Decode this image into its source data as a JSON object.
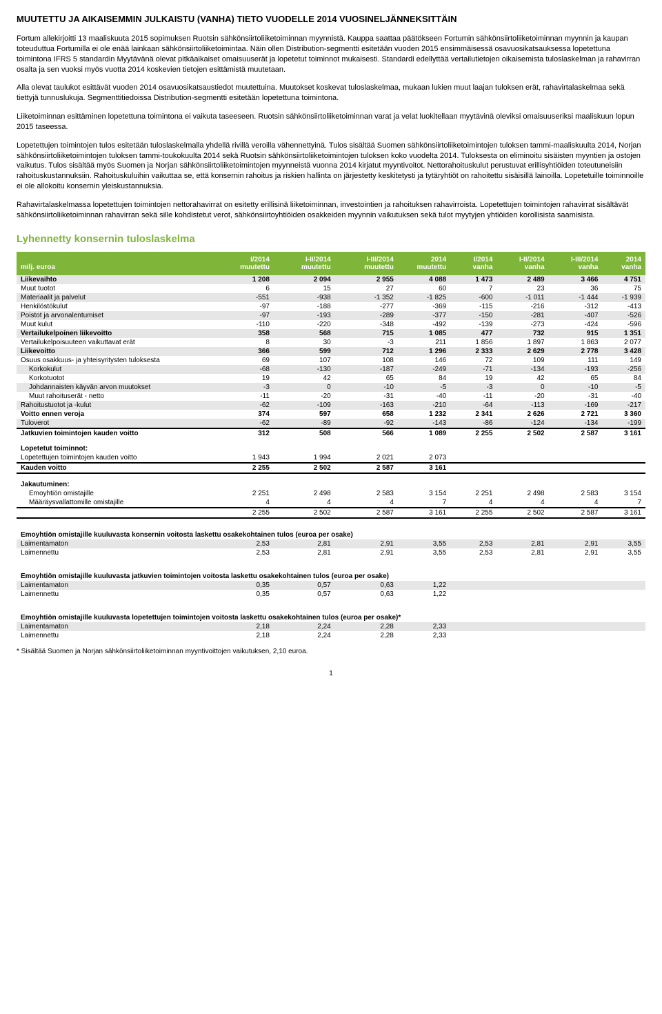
{
  "title": "MUUTETTU JA AIKAISEMMIN JULKAISTU (VANHA) TIETO VUODELLE 2014 VUOSINELJÄNNEKSITTÄIN",
  "para1": "Fortum allekirjoitti 13 maaliskuuta 2015 sopimuksen Ruotsin sähkönsiirtoliiketoiminnan myynnistä. Kauppa saattaa päätökseen Fortumin sähkönsiirtoliiketoiminnan myynnin ja kaupan toteuduttua Fortumilla ei ole enää lainkaan sähkönsiirtoliiketoimintaa. Näin ollen Distribution-segmentti esitetään vuoden 2015 ensimmäisessä osavuosikatsauksessa lopetettuna toimintona IFRS 5 standardin Myytävänä olevat pitkäaikaiset omaisuuserät ja lopetetut toiminnot mukaisesti. Standardi edellyttää vertailutietojen oikaisemista tuloslaskelman ja rahavirran osalta ja sen vuoksi myös vuotta 2014 koskevien tietojen esittämistä muutetaan.",
  "para2": "Alla olevat taulukot esittävät vuoden 2014 osavuosikatsaustiedot muutettuina. Muutokset koskevat tuloslaskelmaa, mukaan lukien muut laajan tuloksen erät, rahavirtalaskelmaa sekä tiettyjä tunnuslukuja. Segmenttitiedoissa Distribution-segmentti esitetään lopetettuna toimintona.",
  "para3": "Liiketoiminnan esittäminen lopetettuna toimintona ei vaikuta taseeseen. Ruotsin sähkönsiirtoliiketoiminnan varat ja velat luokitellaan myytävinä oleviksi omaisuuseriksi maaliskuun lopun 2015 taseessa.",
  "para4": "Lopetettujen toimintojen tulos esitetään tuloslaskelmalla yhdellä rivillä veroilla vähennettyinä. Tulos sisältää Suomen sähkönsiirtoliiketoimintojen tuloksen tammi-maaliskuulta 2014, Norjan sähkönsiirtoliiketoimintojen tuloksen tammi-toukokuulta 2014 sekä Ruotsin sähkönsiirtoliiketoimintojen tuloksen koko vuodelta 2014. Tuloksesta on eliminoitu sisäisten myyntien ja ostojen vaikutus. Tulos sisältää myös Suomen ja Norjan sähkönsiirtoliiketoimintojen myynneistä vuonna 2014 kirjatut myyntivoitot. Nettorahoituskulut perustuvat erillisyhtiöiden toteutuneisiin rahoituskustannuksiin. Rahoituskuluihin vaikuttaa se, että konsernin rahoitus ja riskien hallinta on järjestetty keskitetysti ja tytäryhtiöt on rahoitettu sisäisillä lainoilla. Lopetetuille toiminnoille ei ole allokoitu konsernin yleiskustannuksia.",
  "para5": "Rahavirtalaskelmassa lopetettujen toimintojen nettorahavirrat on esitetty erillisinä liiketoiminnan, investointien ja rahoituksen rahavirroista. Lopetettujen toimintojen rahavirrat sisältävät sähkönsiirtoliiketoiminnan rahavirran sekä sille kohdistetut verot, sähkönsiirtoyhtiöiden osakkeiden myynnin vaikutuksen sekä tulot myytyjen yhtiöiden korollisista saamisista.",
  "table_heading": "Lyhennetty konsernin tuloslaskelma",
  "unit_label": "milj. euroa",
  "cols": [
    "I/2014 muutettu",
    "I-II/2014 muutettu",
    "I-III/2014 muutettu",
    "2014 muutettu",
    "I/2014 vanha",
    "I-II/2014 vanha",
    "I-III/2014 vanha",
    "2014 vanha"
  ],
  "rows": [
    {
      "label": "Liikevaihto",
      "v": [
        "1 208",
        "2 094",
        "2 955",
        "4 088",
        "1 473",
        "2 489",
        "3 466",
        "4 751"
      ],
      "cls": "strong grayrow"
    },
    {
      "label": "Muut tuotot",
      "v": [
        "6",
        "15",
        "27",
        "60",
        "7",
        "23",
        "36",
        "75"
      ]
    },
    {
      "label": "Materiaalit ja palvelut",
      "v": [
        "-551",
        "-938",
        "-1 352",
        "-1 825",
        "-600",
        "-1 011",
        "-1 444",
        "-1 939"
      ],
      "cls": "grayrow"
    },
    {
      "label": "Henkilöstökulut",
      "v": [
        "-97",
        "-188",
        "-277",
        "-369",
        "-115",
        "-216",
        "-312",
        "-413"
      ]
    },
    {
      "label": "Poistot ja arvonalentumiset",
      "v": [
        "-97",
        "-193",
        "-289",
        "-377",
        "-150",
        "-281",
        "-407",
        "-526"
      ],
      "cls": "grayrow"
    },
    {
      "label": "Muut kulut",
      "v": [
        "-110",
        "-220",
        "-348",
        "-492",
        "-139",
        "-273",
        "-424",
        "-596"
      ]
    },
    {
      "label": "Vertailukelpoinen liikevoitto",
      "v": [
        "358",
        "568",
        "715",
        "1 085",
        "477",
        "732",
        "915",
        "1 351"
      ],
      "cls": "strong grayrow"
    },
    {
      "label": "Vertailukelpoisuuteen vaikuttavat erät",
      "v": [
        "8",
        "30",
        "-3",
        "211",
        "1 856",
        "1 897",
        "1 863",
        "2 077"
      ]
    },
    {
      "label": "Liikevoitto",
      "v": [
        "366",
        "599",
        "712",
        "1 296",
        "2 333",
        "2 629",
        "2 778",
        "3 428"
      ],
      "cls": "strong grayrow"
    },
    {
      "label": "Osuus osakkuus- ja yhteisyritysten tuloksesta",
      "v": [
        "69",
        "107",
        "108",
        "146",
        "72",
        "109",
        "111",
        "149"
      ]
    },
    {
      "label": "Korkokulut",
      "v": [
        "-68",
        "-130",
        "-187",
        "-249",
        "-71",
        "-134",
        "-193",
        "-256"
      ],
      "cls": "grayrow",
      "indent": true
    },
    {
      "label": "Korkotuotot",
      "v": [
        "19",
        "42",
        "65",
        "84",
        "19",
        "42",
        "65",
        "84"
      ],
      "indent": true
    },
    {
      "label": "Johdannaisten käyvän arvon muutokset",
      "v": [
        "-3",
        "0",
        "-10",
        "-5",
        "-3",
        "0",
        "-10",
        "-5"
      ],
      "cls": "grayrow",
      "indent": true
    },
    {
      "label": "Muut rahoituserät - netto",
      "v": [
        "-11",
        "-20",
        "-31",
        "-40",
        "-11",
        "-20",
        "-31",
        "-40"
      ],
      "indent": true
    },
    {
      "label": "Rahoitustuotot ja -kulut",
      "v": [
        "-62",
        "-109",
        "-163",
        "-210",
        "-64",
        "-113",
        "-169",
        "-217"
      ],
      "cls": "grayrow"
    },
    {
      "label": "Voitto ennen veroja",
      "v": [
        "374",
        "597",
        "658",
        "1 232",
        "2 341",
        "2 626",
        "2 721",
        "3 360"
      ],
      "cls": "strong"
    },
    {
      "label": "Tuloverot",
      "v": [
        "-62",
        "-89",
        "-92",
        "-143",
        "-86",
        "-124",
        "-134",
        "-199"
      ],
      "cls": "grayrow"
    },
    {
      "label": "Jatkuvien toimintojen kauden voitto",
      "v": [
        "312",
        "508",
        "566",
        "1 089",
        "2 255",
        "2 502",
        "2 587",
        "3 161"
      ],
      "cls": "strong totaltop"
    }
  ],
  "disc_heading": "Lopetetut toiminnot:",
  "disc_row": {
    "label": "Lopetettujen toimintojen kauden voitto",
    "v": [
      "1 943",
      "1 994",
      "2 021",
      "2 073",
      "",
      "",
      "",
      ""
    ]
  },
  "period_profit": {
    "label": "Kauden voitto",
    "v": [
      "2 255",
      "2 502",
      "2 587",
      "3 161",
      "",
      "",
      "",
      ""
    ]
  },
  "attr_heading": "Jakautuminen:",
  "attr_rows": [
    {
      "label": "Emoyhtiön omistajille",
      "v": [
        "2 251",
        "2 498",
        "2 583",
        "3 154",
        "2 251",
        "2 498",
        "2 583",
        "3 154"
      ],
      "indent": true
    },
    {
      "label": "Määräysvallattomille omistajille",
      "v": [
        "4",
        "4",
        "4",
        "7",
        "4",
        "4",
        "4",
        "7"
      ],
      "indent": true
    }
  ],
  "attr_total": [
    "2 255",
    "2 502",
    "2 587",
    "3 161",
    "2 255",
    "2 502",
    "2 587",
    "3 161"
  ],
  "eps1_heading": "Emoyhtiön omistajille kuuluvasta konsernin voitosta laskettu osakekohtainen tulos (euroa per osake)",
  "eps1": [
    {
      "label": "Laimentamaton",
      "v": [
        "2,53",
        "2,81",
        "2,91",
        "3,55",
        "2,53",
        "2,81",
        "2,91",
        "3,55"
      ]
    },
    {
      "label": "Laimennettu",
      "v": [
        "2,53",
        "2,81",
        "2,91",
        "3,55",
        "2,53",
        "2,81",
        "2,91",
        "3,55"
      ]
    }
  ],
  "eps2_heading": "Emoyhtiön omistajille kuuluvasta jatkuvien toimintojen voitosta laskettu osakekohtainen tulos (euroa per osake)",
  "eps2": [
    {
      "label": "Laimentamaton",
      "v": [
        "0,35",
        "0,57",
        "0,63",
        "1,22",
        "",
        "",
        "",
        ""
      ]
    },
    {
      "label": "Laimennettu",
      "v": [
        "0,35",
        "0,57",
        "0,63",
        "1,22",
        "",
        "",
        "",
        ""
      ]
    }
  ],
  "eps3_heading": "Emoyhtiön omistajille kuuluvasta lopetettujen toimintojen voitosta laskettu osakekohtainen tulos (euroa per osake)*",
  "eps3": [
    {
      "label": "Laimentamaton",
      "v": [
        "2,18",
        "2,24",
        "2,28",
        "2,33",
        "",
        "",
        "",
        ""
      ]
    },
    {
      "label": "Laimennettu",
      "v": [
        "2,18",
        "2,24",
        "2,28",
        "2,33",
        "",
        "",
        "",
        ""
      ]
    }
  ],
  "footnote": "* Sisältää Suomen ja Norjan sähkönsiirtoliiketoiminnan myyntivoittojen vaikutuksen, 2,10 euroa.",
  "pagenum": "1"
}
